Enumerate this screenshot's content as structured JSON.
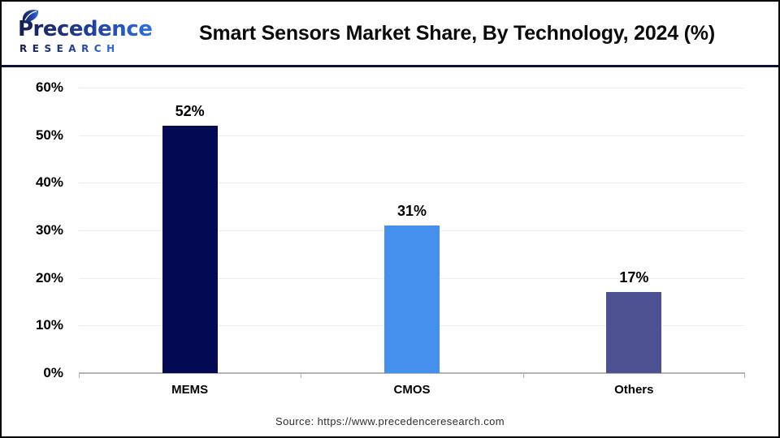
{
  "header": {
    "logo": {
      "line1": "Precedence",
      "line2": "RESEARCH",
      "color_navy": "#161e52",
      "color_blue": "#2f6fe4"
    },
    "title": "Smart Sensors Market Share, By Technology, 2024 (%)"
  },
  "chart_data": {
    "type": "bar",
    "title": "Smart Sensors Market Share, By Technology, 2024 (%)",
    "categories": [
      "MEMS",
      "CMOS",
      "Others"
    ],
    "values": [
      52,
      31,
      17
    ],
    "value_labels": [
      "52%",
      "31%",
      "17%"
    ],
    "bar_colors": [
      "#040a52",
      "#4590ec",
      "#4b5191"
    ],
    "xlabel": "",
    "ylabel": "",
    "ylim": [
      0,
      60
    ],
    "ytick_step": 10,
    "ytick_labels": [
      "0%",
      "10%",
      "20%",
      "30%",
      "40%",
      "50%",
      "60%"
    ],
    "grid": true,
    "legend": false,
    "gridline_color": "#eeeeee",
    "axis_color": "#b3b3b3"
  },
  "footer": {
    "source": "Source: https://www.precedenceresearch.com"
  }
}
